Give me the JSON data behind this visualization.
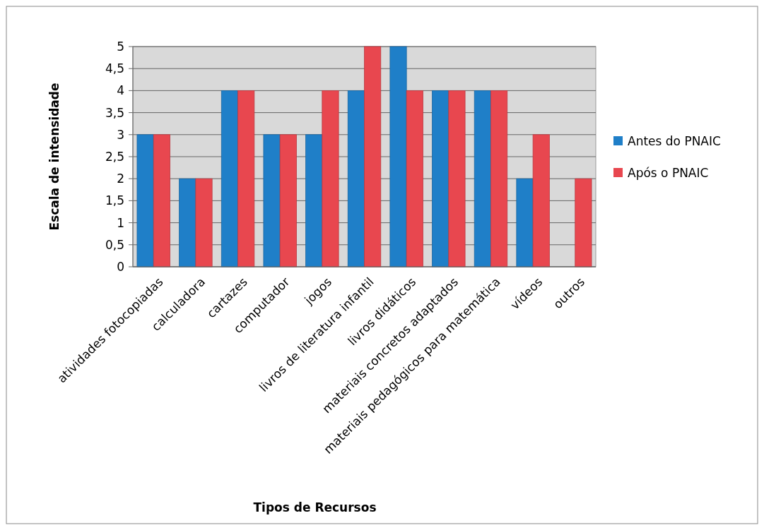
{
  "chart_data": {
    "type": "bar",
    "xlabel": "Tipos de Recursos",
    "ylabel": "Escala de intensidade",
    "categories": [
      "atividades fotocopiadas",
      "calculadora",
      "cartazes",
      "computador",
      "jogos",
      "livros de literatura infantil",
      "livros didáticos",
      "materiais concretos adaptados",
      "materiais pedagógicos para matemática",
      "vídeos",
      "outros"
    ],
    "series": [
      {
        "name": "Antes do PNAIC",
        "color": "#1f7fc8",
        "values": [
          3,
          2,
          4,
          3,
          3,
          4,
          5,
          4,
          4,
          2,
          0
        ]
      },
      {
        "name": "Após o PNAIC",
        "color": "#e8474f",
        "values": [
          3,
          2,
          4,
          3,
          4,
          5,
          4,
          4,
          4,
          3,
          2
        ]
      }
    ],
    "ylim": [
      0,
      5
    ],
    "yticks": [
      0,
      {
        "value": 0.5,
        "label": "0,5"
      },
      1,
      {
        "value": 1.5,
        "label": "1,5"
      },
      2,
      {
        "value": 2.5,
        "label": "2,5"
      },
      3,
      {
        "value": 3.5,
        "label": "3,5"
      },
      4,
      {
        "value": 4.5,
        "label": "4,5"
      },
      5
    ],
    "grid": "y",
    "legend": "right"
  }
}
